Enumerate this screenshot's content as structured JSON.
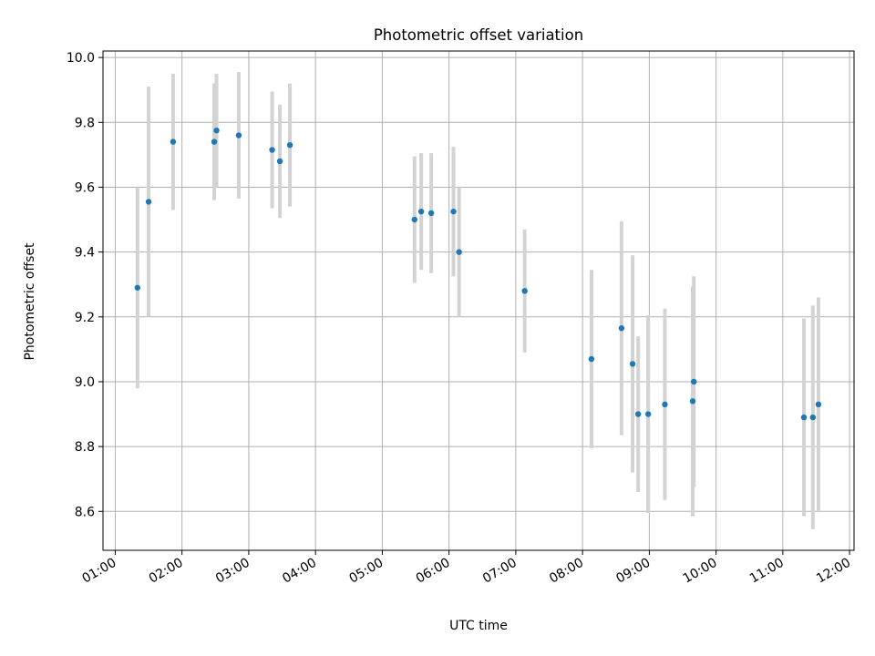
{
  "chart_data": {
    "type": "scatter",
    "title": "Photometric offset variation",
    "xlabel": "UTC time",
    "ylabel": "Photometric offset",
    "x_tick_labels": [
      "01:00",
      "02:00",
      "03:00",
      "04:00",
      "05:00",
      "06:00",
      "07:00",
      "08:00",
      "09:00",
      "10:00",
      "11:00",
      "12:00"
    ],
    "y_ticks": [
      8.6,
      8.8,
      9.0,
      9.2,
      9.4,
      9.6,
      9.8,
      10.0
    ],
    "xlim": [
      "00:49",
      "12:04"
    ],
    "ylim": [
      8.48,
      10.02
    ],
    "grid": true,
    "colors": {
      "point": "#1f77b4",
      "errorbar": "#d3d3d3",
      "grid": "#b0b0b0"
    },
    "series": [
      {
        "points": [
          {
            "x": "01:20",
            "y": 9.29,
            "yerr": 0.31
          },
          {
            "x": "01:30",
            "y": 9.555,
            "yerr": 0.355
          },
          {
            "x": "01:52",
            "y": 9.74,
            "yerr": 0.21
          },
          {
            "x": "02:29",
            "y": 9.74,
            "yerr": 0.18
          },
          {
            "x": "02:31",
            "y": 9.775,
            "yerr": 0.175
          },
          {
            "x": "02:51",
            "y": 9.76,
            "yerr": 0.195
          },
          {
            "x": "03:21",
            "y": 9.715,
            "yerr": 0.18
          },
          {
            "x": "03:28",
            "y": 9.68,
            "yerr": 0.175
          },
          {
            "x": "03:37",
            "y": 9.73,
            "yerr": 0.19
          },
          {
            "x": "05:29",
            "y": 9.5,
            "yerr": 0.195
          },
          {
            "x": "05:35",
            "y": 9.525,
            "yerr": 0.18
          },
          {
            "x": "05:44",
            "y": 9.52,
            "yerr": 0.185
          },
          {
            "x": "06:04",
            "y": 9.525,
            "yerr": 0.2
          },
          {
            "x": "06:09",
            "y": 9.4,
            "yerr": 0.2
          },
          {
            "x": "07:08",
            "y": 9.28,
            "yerr": 0.19
          },
          {
            "x": "08:08",
            "y": 9.07,
            "yerr": 0.275
          },
          {
            "x": "08:35",
            "y": 9.165,
            "yerr": 0.33
          },
          {
            "x": "08:45",
            "y": 9.055,
            "yerr": 0.335
          },
          {
            "x": "08:50",
            "y": 8.9,
            "yerr": 0.24
          },
          {
            "x": "08:59",
            "y": 8.9,
            "yerr": 0.305
          },
          {
            "x": "09:14",
            "y": 8.93,
            "yerr": 0.295
          },
          {
            "x": "09:39",
            "y": 8.94,
            "yerr": 0.355
          },
          {
            "x": "09:40",
            "y": 9.0,
            "yerr": 0.325
          },
          {
            "x": "11:19",
            "y": 8.89,
            "yerr": 0.305
          },
          {
            "x": "11:27",
            "y": 8.89,
            "yerr": 0.345
          },
          {
            "x": "11:32",
            "y": 8.93,
            "yerr": 0.33
          }
        ]
      }
    ]
  }
}
